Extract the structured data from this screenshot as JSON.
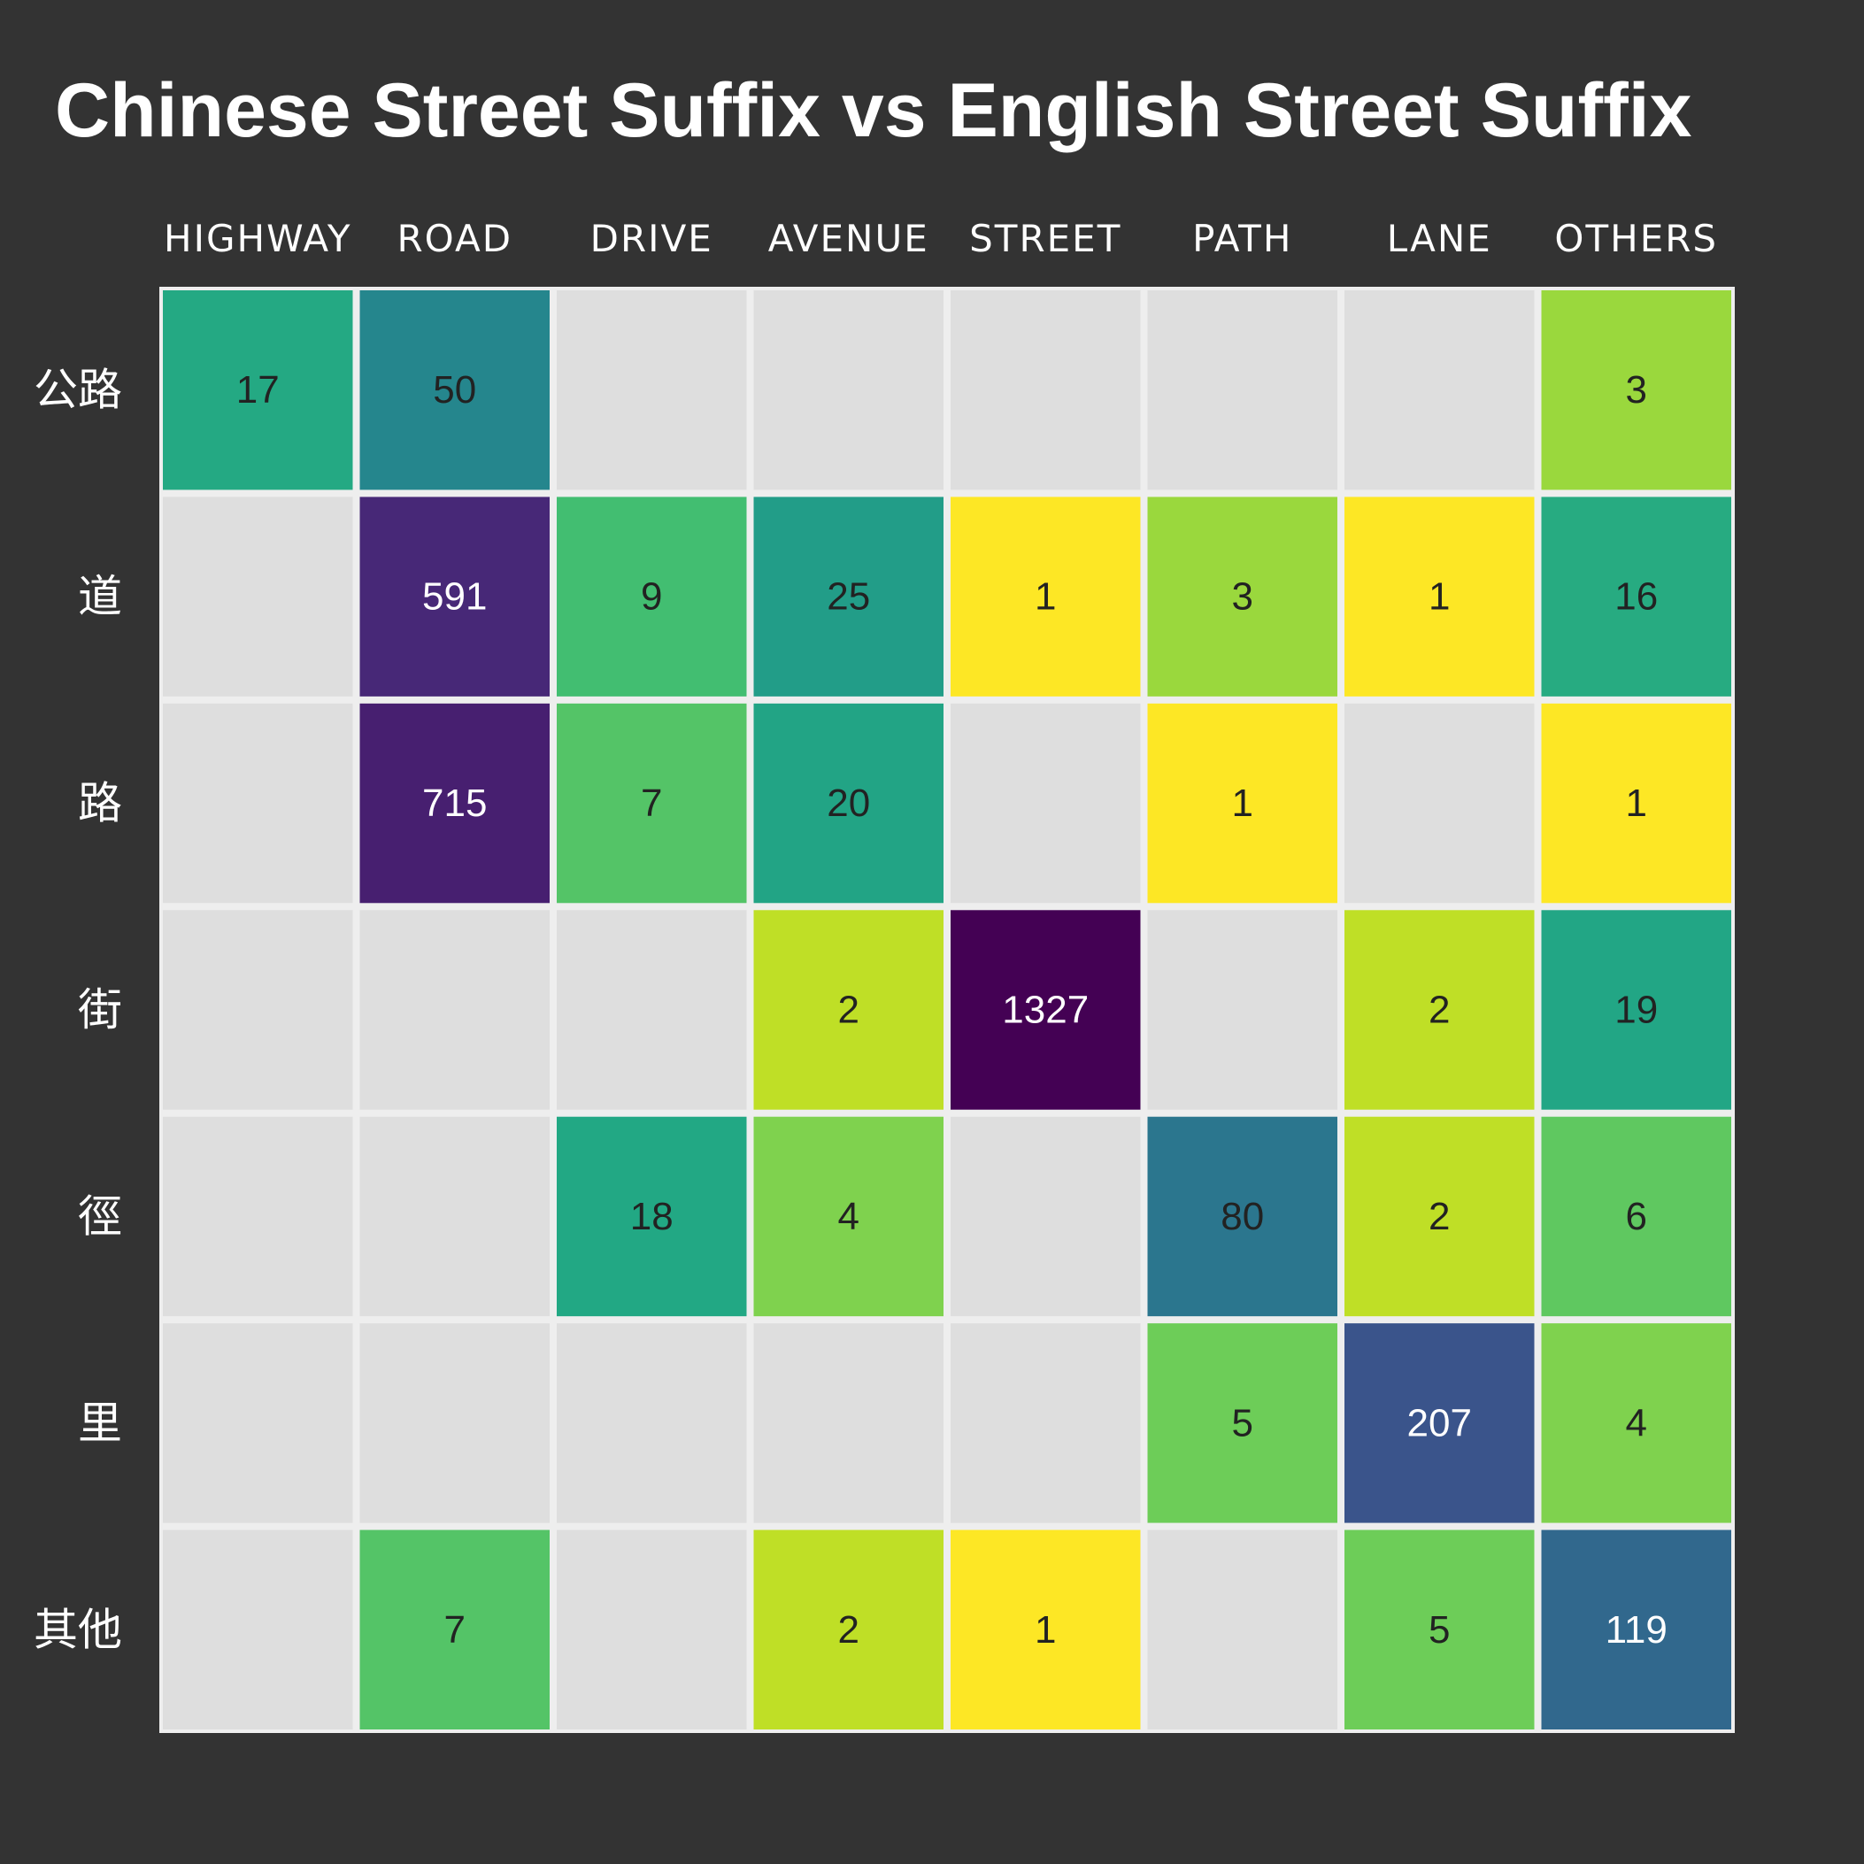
{
  "chart_data": {
    "type": "heatmap",
    "title": "Chinese Street Suffix vs English Street Suffix",
    "x_categories": [
      "HIGHWAY",
      "ROAD",
      "DRIVE",
      "AVENUE",
      "STREET",
      "PATH",
      "LANE",
      "OTHERS"
    ],
    "y_categories": [
      "公路",
      "道",
      "路",
      "街",
      "徑",
      "里",
      "其他"
    ],
    "values": [
      [
        17,
        50,
        null,
        null,
        null,
        null,
        null,
        3
      ],
      [
        null,
        591,
        9,
        25,
        1,
        3,
        1,
        16
      ],
      [
        null,
        715,
        7,
        20,
        null,
        1,
        null,
        1
      ],
      [
        null,
        null,
        null,
        2,
        1327,
        null,
        2,
        19
      ],
      [
        null,
        null,
        18,
        4,
        null,
        80,
        2,
        6
      ],
      [
        null,
        null,
        null,
        null,
        null,
        5,
        207,
        4
      ],
      [
        null,
        7,
        null,
        2,
        1,
        null,
        5,
        119
      ]
    ],
    "colorscale": "viridis",
    "colorscale_reversed": true,
    "color_scale_log": true,
    "empty_cell_color": "#dedede",
    "cell_border_color": "#eeeeee"
  },
  "colors": {
    "background": "#333333",
    "text_on_light": "#222222",
    "text_on_dark": "#ffffff"
  }
}
